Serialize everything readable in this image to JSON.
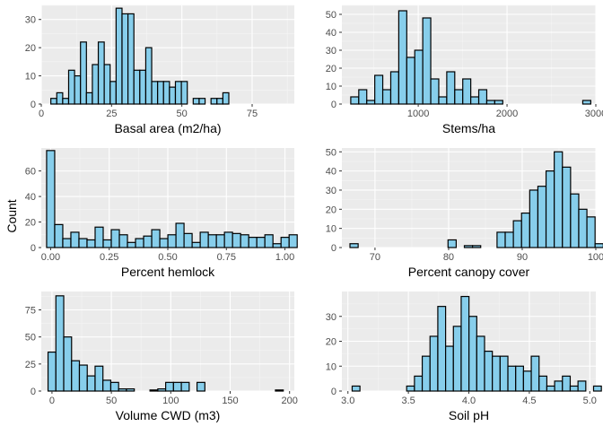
{
  "figure": {
    "shared_ylabel": "Count",
    "colors": {
      "panel_bg": "#EBEBEB",
      "grid_major": "#FFFFFF",
      "bar_fill": "#87CEEB",
      "bar_stroke": "#000000",
      "tick_text": "#4D4D4D"
    }
  },
  "chart_data": [
    {
      "type": "bar",
      "xlabel": "Basal area (m2/ha)",
      "ylabel": "Count",
      "grid": true,
      "xlim": [
        0,
        90
      ],
      "ylim": [
        0,
        35
      ],
      "xticks": [
        0,
        25,
        50,
        75
      ],
      "yticks": [
        0,
        10,
        20,
        30
      ],
      "xtick_labels": [
        "0",
        "25",
        "50",
        "75"
      ],
      "ytick_labels": [
        "0",
        "10",
        "20",
        "30"
      ],
      "bin_start": 3.4,
      "bin_width": 2.11,
      "values": [
        2,
        4,
        2,
        12,
        10,
        22,
        4,
        14,
        22,
        14,
        8,
        34,
        32,
        32,
        12,
        12,
        20,
        8,
        8,
        8,
        6,
        8,
        8,
        0,
        2,
        2,
        0,
        2,
        2,
        4
      ]
    },
    {
      "type": "bar",
      "xlabel": "Stems/ha",
      "ylabel": "Count",
      "grid": true,
      "xlim": [
        140,
        3000
      ],
      "ylim": [
        0,
        55
      ],
      "xticks": [
        1000,
        2000,
        3000
      ],
      "yticks": [
        0,
        10,
        20,
        30,
        40,
        50
      ],
      "xtick_labels": [
        "1000",
        "2000",
        "3000"
      ],
      "ytick_labels": [
        "0",
        "10",
        "20",
        "30",
        "40",
        "50"
      ],
      "bin_start": 240,
      "bin_width": 90.1,
      "values": [
        4,
        8,
        2,
        16,
        8,
        18,
        52,
        26,
        30,
        48,
        14,
        4,
        18,
        8,
        14,
        4,
        8,
        2,
        2,
        0,
        0,
        0,
        0,
        0,
        0,
        0,
        0,
        0,
        0,
        2
      ]
    },
    {
      "type": "bar",
      "xlabel": "Percent hemlock",
      "ylabel": "Count",
      "grid": true,
      "xlim": [
        -0.04,
        1.04
      ],
      "ylim": [
        0,
        78
      ],
      "xticks": [
        0,
        0.25,
        0.5,
        0.75,
        1
      ],
      "yticks": [
        0,
        20,
        40,
        60
      ],
      "xtick_labels": [
        "0.00",
        "0.25",
        "0.50",
        "0.75",
        "1.00"
      ],
      "ytick_labels": [
        "0",
        "20",
        "40",
        "60"
      ],
      "bin_start": -0.0172,
      "bin_width": 0.0345,
      "values": [
        76,
        18,
        7,
        12,
        7,
        6,
        16,
        6,
        14,
        10,
        4,
        7,
        9,
        14,
        7,
        10,
        19,
        11,
        4,
        12,
        10,
        10,
        12,
        11,
        10,
        8,
        8,
        10,
        3,
        8,
        10
      ]
    },
    {
      "type": "bar",
      "xlabel": "Percent canopy cover",
      "ylabel": "Count",
      "grid": true,
      "xlim": [
        65.5,
        100
      ],
      "ylim": [
        0,
        52
      ],
      "xticks": [
        70,
        80,
        90,
        100
      ],
      "yticks": [
        0,
        10,
        20,
        30,
        40,
        50
      ],
      "xtick_labels": [
        "70",
        "80",
        "90",
        "100"
      ],
      "ytick_labels": [
        "0",
        "10",
        "20",
        "30",
        "40",
        "50"
      ],
      "bin_start": 66.6,
      "bin_width": 1.11,
      "values": [
        2,
        0,
        0,
        0,
        0,
        0,
        0,
        0,
        0,
        0,
        0,
        0,
        4,
        0,
        1,
        1,
        0,
        0,
        8,
        8,
        14,
        18,
        30,
        32,
        40,
        50,
        42,
        28,
        20,
        16,
        2
      ]
    },
    {
      "type": "bar",
      "xlabel": "Volume CWD (m3)",
      "ylabel": "Count",
      "grid": true,
      "xlim": [
        -9,
        204
      ],
      "ylim": [
        0,
        92
      ],
      "xticks": [
        0,
        50,
        100,
        150,
        200
      ],
      "yticks": [
        0,
        25,
        50,
        75
      ],
      "xtick_labels": [
        "0",
        "50",
        "100",
        "150",
        "200"
      ],
      "ytick_labels": [
        "0",
        "25",
        "50",
        "75"
      ],
      "bin_start": -3.3,
      "bin_width": 6.6,
      "values": [
        36,
        88,
        50,
        28,
        24,
        14,
        23,
        10,
        8,
        2,
        2,
        0,
        0,
        1,
        2,
        8,
        8,
        8,
        0,
        8,
        0,
        0,
        0,
        0,
        0,
        0,
        0,
        0,
        0,
        1
      ]
    },
    {
      "type": "bar",
      "xlabel": "Soil pH",
      "ylabel": "Count",
      "grid": true,
      "xlim": [
        2.95,
        5.05
      ],
      "ylim": [
        0,
        40
      ],
      "xticks": [
        3,
        3.5,
        4,
        4.5,
        5
      ],
      "yticks": [
        0,
        10,
        20,
        30
      ],
      "xtick_labels": [
        "3.0",
        "3.5",
        "4.0",
        "4.5",
        "5.0"
      ],
      "ytick_labels": [
        "0",
        "10",
        "20",
        "30"
      ],
      "bin_start": 3.035,
      "bin_width": 0.0644,
      "values": [
        2,
        0,
        0,
        0,
        0,
        0,
        0,
        2,
        6,
        14,
        22,
        34,
        18,
        26,
        38,
        30,
        22,
        16,
        14,
        14,
        10,
        10,
        8,
        14,
        6,
        2,
        4,
        6,
        2,
        4,
        0,
        2
      ]
    }
  ]
}
